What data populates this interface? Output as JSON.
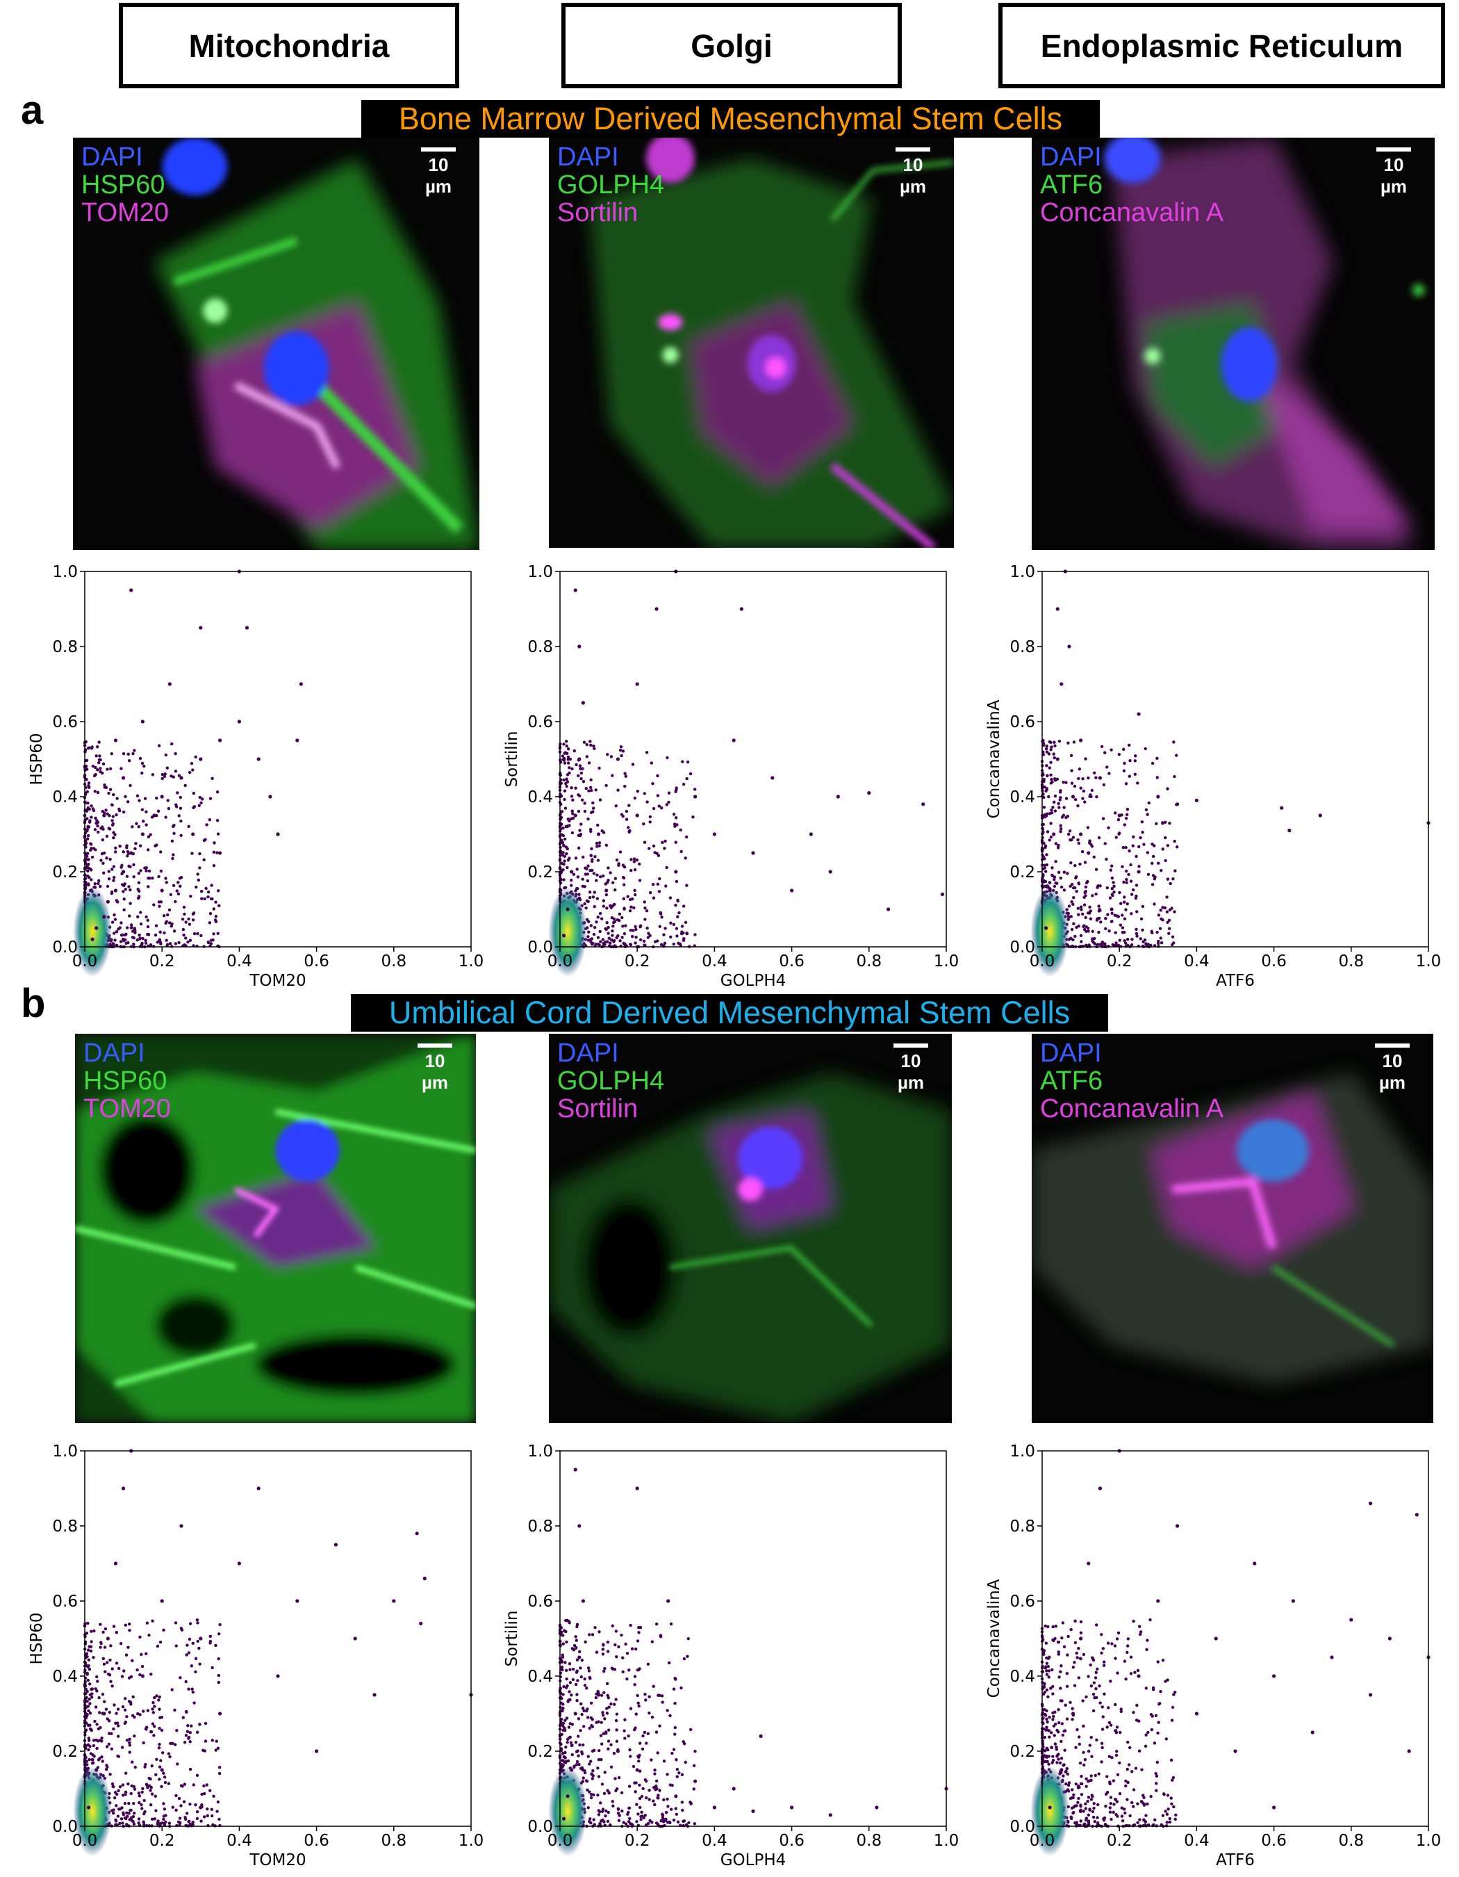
{
  "headers": [
    "Mitochondria",
    "Golgi",
    "Endoplasmic Reticulum"
  ],
  "panels": [
    {
      "letter": "a",
      "title": "Bone Marrow Derived Mesenchymal Stem Cells",
      "title_color": "#ff9900",
      "images": [
        {
          "channels": [
            {
              "text": "DAPI",
              "color": "#3a5bff"
            },
            {
              "text": "HSP60",
              "color": "#3dd93d"
            },
            {
              "text": "TOM20",
              "color": "#e040e0"
            }
          ],
          "scale": "10 µm"
        },
        {
          "channels": [
            {
              "text": "DAPI",
              "color": "#3a5bff"
            },
            {
              "text": "GOLPH4",
              "color": "#3dd93d"
            },
            {
              "text": "Sortilin",
              "color": "#e040e0"
            }
          ],
          "scale": "10 µm"
        },
        {
          "channels": [
            {
              "text": "DAPI",
              "color": "#3a5bff"
            },
            {
              "text": "ATF6",
              "color": "#3dd93d"
            },
            {
              "text": "Concanavalin A",
              "color": "#e040e0"
            }
          ],
          "scale": "10 µm"
        }
      ]
    },
    {
      "letter": "b",
      "title": "Umbilical Cord Derived Mesenchymal Stem Cells",
      "title_color": "#1ab2ee",
      "images": [
        {
          "channels": [
            {
              "text": "DAPI",
              "color": "#3a5bff"
            },
            {
              "text": "HSP60",
              "color": "#3dd93d"
            },
            {
              "text": "TOM20",
              "color": "#e040e0"
            }
          ],
          "scale": "10 µm"
        },
        {
          "channels": [
            {
              "text": "DAPI",
              "color": "#3a5bff"
            },
            {
              "text": "GOLPH4",
              "color": "#3dd93d"
            },
            {
              "text": "Sortilin",
              "color": "#e040e0"
            }
          ],
          "scale": "10 µm"
        },
        {
          "channels": [
            {
              "text": "DAPI",
              "color": "#3a5bff"
            },
            {
              "text": "ATF6",
              "color": "#3dd93d"
            },
            {
              "text": "Concanavalin A",
              "color": "#e040e0"
            }
          ],
          "scale": "10 µm"
        }
      ]
    }
  ],
  "chart_data": [
    {
      "panel": "a",
      "type": "scatter",
      "xlabel": "TOM20",
      "ylabel": "HSP60",
      "xlim": [
        0,
        1
      ],
      "ylim": [
        0,
        1
      ],
      "xticks": [
        "0.0",
        "0.2",
        "0.4",
        "0.6",
        "0.8",
        "1.0"
      ],
      "yticks": [
        "0.0",
        "0.2",
        "0.4",
        "0.6",
        "0.8",
        "1.0"
      ],
      "color_scale": "density (viridis)",
      "points": [
        [
          0.02,
          0.02
        ],
        [
          0.03,
          0.05
        ],
        [
          0.05,
          0.08
        ],
        [
          0.06,
          0.12
        ],
        [
          0.08,
          0.15
        ],
        [
          0.1,
          0.2
        ],
        [
          0.12,
          0.25
        ],
        [
          0.15,
          0.3
        ],
        [
          0.18,
          0.35
        ],
        [
          0.2,
          0.4
        ],
        [
          0.25,
          0.45
        ],
        [
          0.3,
          0.5
        ],
        [
          0.35,
          0.55
        ],
        [
          0.4,
          0.6
        ],
        [
          0.45,
          0.5
        ],
        [
          0.5,
          0.3
        ],
        [
          0.55,
          0.55
        ],
        [
          0.22,
          0.7
        ],
        [
          0.3,
          0.85
        ],
        [
          0.12,
          0.95
        ],
        [
          0.4,
          1.0
        ],
        [
          0.15,
          0.6
        ],
        [
          0.05,
          0.35
        ],
        [
          0.1,
          0.45
        ],
        [
          0.28,
          0.3
        ],
        [
          0.35,
          0.25
        ],
        [
          0.2,
          0.15
        ],
        [
          0.08,
          0.55
        ],
        [
          0.48,
          0.4
        ],
        [
          0.42,
          0.85
        ],
        [
          0.56,
          0.7
        ]
      ]
    },
    {
      "panel": "a",
      "type": "scatter",
      "xlabel": "GOLPH4",
      "ylabel": "Sortilin",
      "xlim": [
        0,
        1
      ],
      "ylim": [
        0,
        1
      ],
      "xticks": [
        "0.0",
        "0.2",
        "0.4",
        "0.6",
        "0.8",
        "1.0"
      ],
      "yticks": [
        "0.0",
        "0.2",
        "0.4",
        "0.6",
        "0.8",
        "1.0"
      ],
      "color_scale": "density (viridis)",
      "points": [
        [
          0.01,
          0.03
        ],
        [
          0.02,
          0.1
        ],
        [
          0.03,
          0.2
        ],
        [
          0.04,
          0.35
        ],
        [
          0.05,
          0.5
        ],
        [
          0.06,
          0.65
        ],
        [
          0.05,
          0.8
        ],
        [
          0.04,
          0.95
        ],
        [
          0.1,
          0.3
        ],
        [
          0.15,
          0.5
        ],
        [
          0.2,
          0.7
        ],
        [
          0.25,
          0.9
        ],
        [
          0.3,
          1.0
        ],
        [
          0.35,
          0.4
        ],
        [
          0.4,
          0.3
        ],
        [
          0.45,
          0.55
        ],
        [
          0.5,
          0.25
        ],
        [
          0.55,
          0.45
        ],
        [
          0.6,
          0.15
        ],
        [
          0.65,
          0.3
        ],
        [
          0.7,
          0.2
        ],
        [
          0.72,
          0.4
        ],
        [
          0.8,
          0.41
        ],
        [
          0.85,
          0.1
        ],
        [
          0.94,
          0.38
        ],
        [
          0.99,
          0.14
        ],
        [
          0.47,
          0.9
        ],
        [
          0.3,
          0.2
        ],
        [
          0.12,
          0.15
        ],
        [
          0.2,
          0.35
        ]
      ]
    },
    {
      "panel": "a",
      "type": "scatter",
      "xlabel": "ATF6",
      "ylabel": "ConcanavalinA",
      "xlim": [
        0,
        1
      ],
      "ylim": [
        0,
        1
      ],
      "xticks": [
        "0.0",
        "0.2",
        "0.4",
        "0.6",
        "0.8",
        "1.0"
      ],
      "yticks": [
        "0.0",
        "0.2",
        "0.4",
        "0.6",
        "0.8",
        "1.0"
      ],
      "color_scale": "density (viridis)",
      "points": [
        [
          0.01,
          0.05
        ],
        [
          0.02,
          0.15
        ],
        [
          0.03,
          0.3
        ],
        [
          0.04,
          0.5
        ],
        [
          0.05,
          0.7
        ],
        [
          0.04,
          0.9
        ],
        [
          0.06,
          1.0
        ],
        [
          0.08,
          0.4
        ],
        [
          0.1,
          0.3
        ],
        [
          0.12,
          0.25
        ],
        [
          0.15,
          0.45
        ],
        [
          0.2,
          0.35
        ],
        [
          0.25,
          0.2
        ],
        [
          0.3,
          0.4
        ],
        [
          0.35,
          0.38
        ],
        [
          0.4,
          0.39
        ],
        [
          0.25,
          0.62
        ],
        [
          0.62,
          0.37
        ],
        [
          0.64,
          0.31
        ],
        [
          0.72,
          0.35
        ],
        [
          1.0,
          0.33
        ],
        [
          0.18,
          0.1
        ],
        [
          0.1,
          0.55
        ],
        [
          0.07,
          0.8
        ]
      ]
    },
    {
      "panel": "b",
      "type": "scatter",
      "xlabel": "TOM20",
      "ylabel": "HSP60",
      "xlim": [
        0,
        1
      ],
      "ylim": [
        0,
        1
      ],
      "xticks": [
        "0.0",
        "0.2",
        "0.4",
        "0.6",
        "0.8",
        "1.0"
      ],
      "yticks": [
        "0.0",
        "0.2",
        "0.4",
        "0.6",
        "0.8",
        "1.0"
      ],
      "color_scale": "density (viridis)",
      "points": [
        [
          0.01,
          0.05
        ],
        [
          0.03,
          0.15
        ],
        [
          0.05,
          0.3
        ],
        [
          0.06,
          0.5
        ],
        [
          0.08,
          0.7
        ],
        [
          0.1,
          0.9
        ],
        [
          0.12,
          1.0
        ],
        [
          0.15,
          0.4
        ],
        [
          0.2,
          0.6
        ],
        [
          0.25,
          0.8
        ],
        [
          0.3,
          0.5
        ],
        [
          0.35,
          0.3
        ],
        [
          0.4,
          0.7
        ],
        [
          0.45,
          0.9
        ],
        [
          0.5,
          0.4
        ],
        [
          0.55,
          0.6
        ],
        [
          0.6,
          0.2
        ],
        [
          0.65,
          0.75
        ],
        [
          0.7,
          0.5
        ],
        [
          0.75,
          0.35
        ],
        [
          0.8,
          0.6
        ],
        [
          0.86,
          0.78
        ],
        [
          0.87,
          0.54
        ],
        [
          0.88,
          0.66
        ],
        [
          1.0,
          0.35
        ],
        [
          0.2,
          0.15
        ],
        [
          0.3,
          0.05
        ]
      ]
    },
    {
      "panel": "b",
      "type": "scatter",
      "xlabel": "GOLPH4",
      "ylabel": "Sortilin",
      "xlim": [
        0,
        1
      ],
      "ylim": [
        0,
        1
      ],
      "xticks": [
        "0.0",
        "0.2",
        "0.4",
        "0.6",
        "0.8",
        "1.0"
      ],
      "yticks": [
        "0.0",
        "0.2",
        "0.4",
        "0.6",
        "0.8",
        "1.0"
      ],
      "color_scale": "density (viridis)",
      "points": [
        [
          0.01,
          0.02
        ],
        [
          0.02,
          0.08
        ],
        [
          0.03,
          0.15
        ],
        [
          0.04,
          0.3
        ],
        [
          0.05,
          0.45
        ],
        [
          0.06,
          0.6
        ],
        [
          0.05,
          0.8
        ],
        [
          0.04,
          0.95
        ],
        [
          0.1,
          0.35
        ],
        [
          0.15,
          0.2
        ],
        [
          0.2,
          0.15
        ],
        [
          0.25,
          0.1
        ],
        [
          0.3,
          0.08
        ],
        [
          0.35,
          0.12
        ],
        [
          0.4,
          0.05
        ],
        [
          0.45,
          0.1
        ],
        [
          0.5,
          0.04
        ],
        [
          0.52,
          0.24
        ],
        [
          0.6,
          0.05
        ],
        [
          0.7,
          0.03
        ],
        [
          0.82,
          0.05
        ],
        [
          1.0,
          0.1
        ],
        [
          0.2,
          0.9
        ],
        [
          0.28,
          0.6
        ]
      ]
    },
    {
      "panel": "b",
      "type": "scatter",
      "xlabel": "ATF6",
      "ylabel": "ConcanavalinA",
      "xlim": [
        0,
        1
      ],
      "ylim": [
        0,
        1
      ],
      "xticks": [
        "0.0",
        "0.2",
        "0.4",
        "0.6",
        "0.8",
        "1.0"
      ],
      "yticks": [
        "0.0",
        "0.2",
        "0.4",
        "0.6",
        "0.8",
        "1.0"
      ],
      "color_scale": "density (viridis)",
      "points": [
        [
          0.02,
          0.05
        ],
        [
          0.05,
          0.15
        ],
        [
          0.08,
          0.3
        ],
        [
          0.1,
          0.5
        ],
        [
          0.12,
          0.7
        ],
        [
          0.15,
          0.9
        ],
        [
          0.2,
          1.0
        ],
        [
          0.25,
          0.4
        ],
        [
          0.3,
          0.6
        ],
        [
          0.35,
          0.8
        ],
        [
          0.4,
          0.3
        ],
        [
          0.45,
          0.5
        ],
        [
          0.5,
          0.2
        ],
        [
          0.55,
          0.7
        ],
        [
          0.6,
          0.4
        ],
        [
          0.65,
          0.6
        ],
        [
          0.7,
          0.25
        ],
        [
          0.75,
          0.45
        ],
        [
          0.8,
          0.55
        ],
        [
          0.85,
          0.35
        ],
        [
          0.9,
          0.5
        ],
        [
          0.95,
          0.2
        ],
        [
          1.0,
          0.45
        ],
        [
          0.85,
          0.86
        ],
        [
          0.97,
          0.83
        ],
        [
          0.6,
          0.05
        ]
      ]
    }
  ]
}
